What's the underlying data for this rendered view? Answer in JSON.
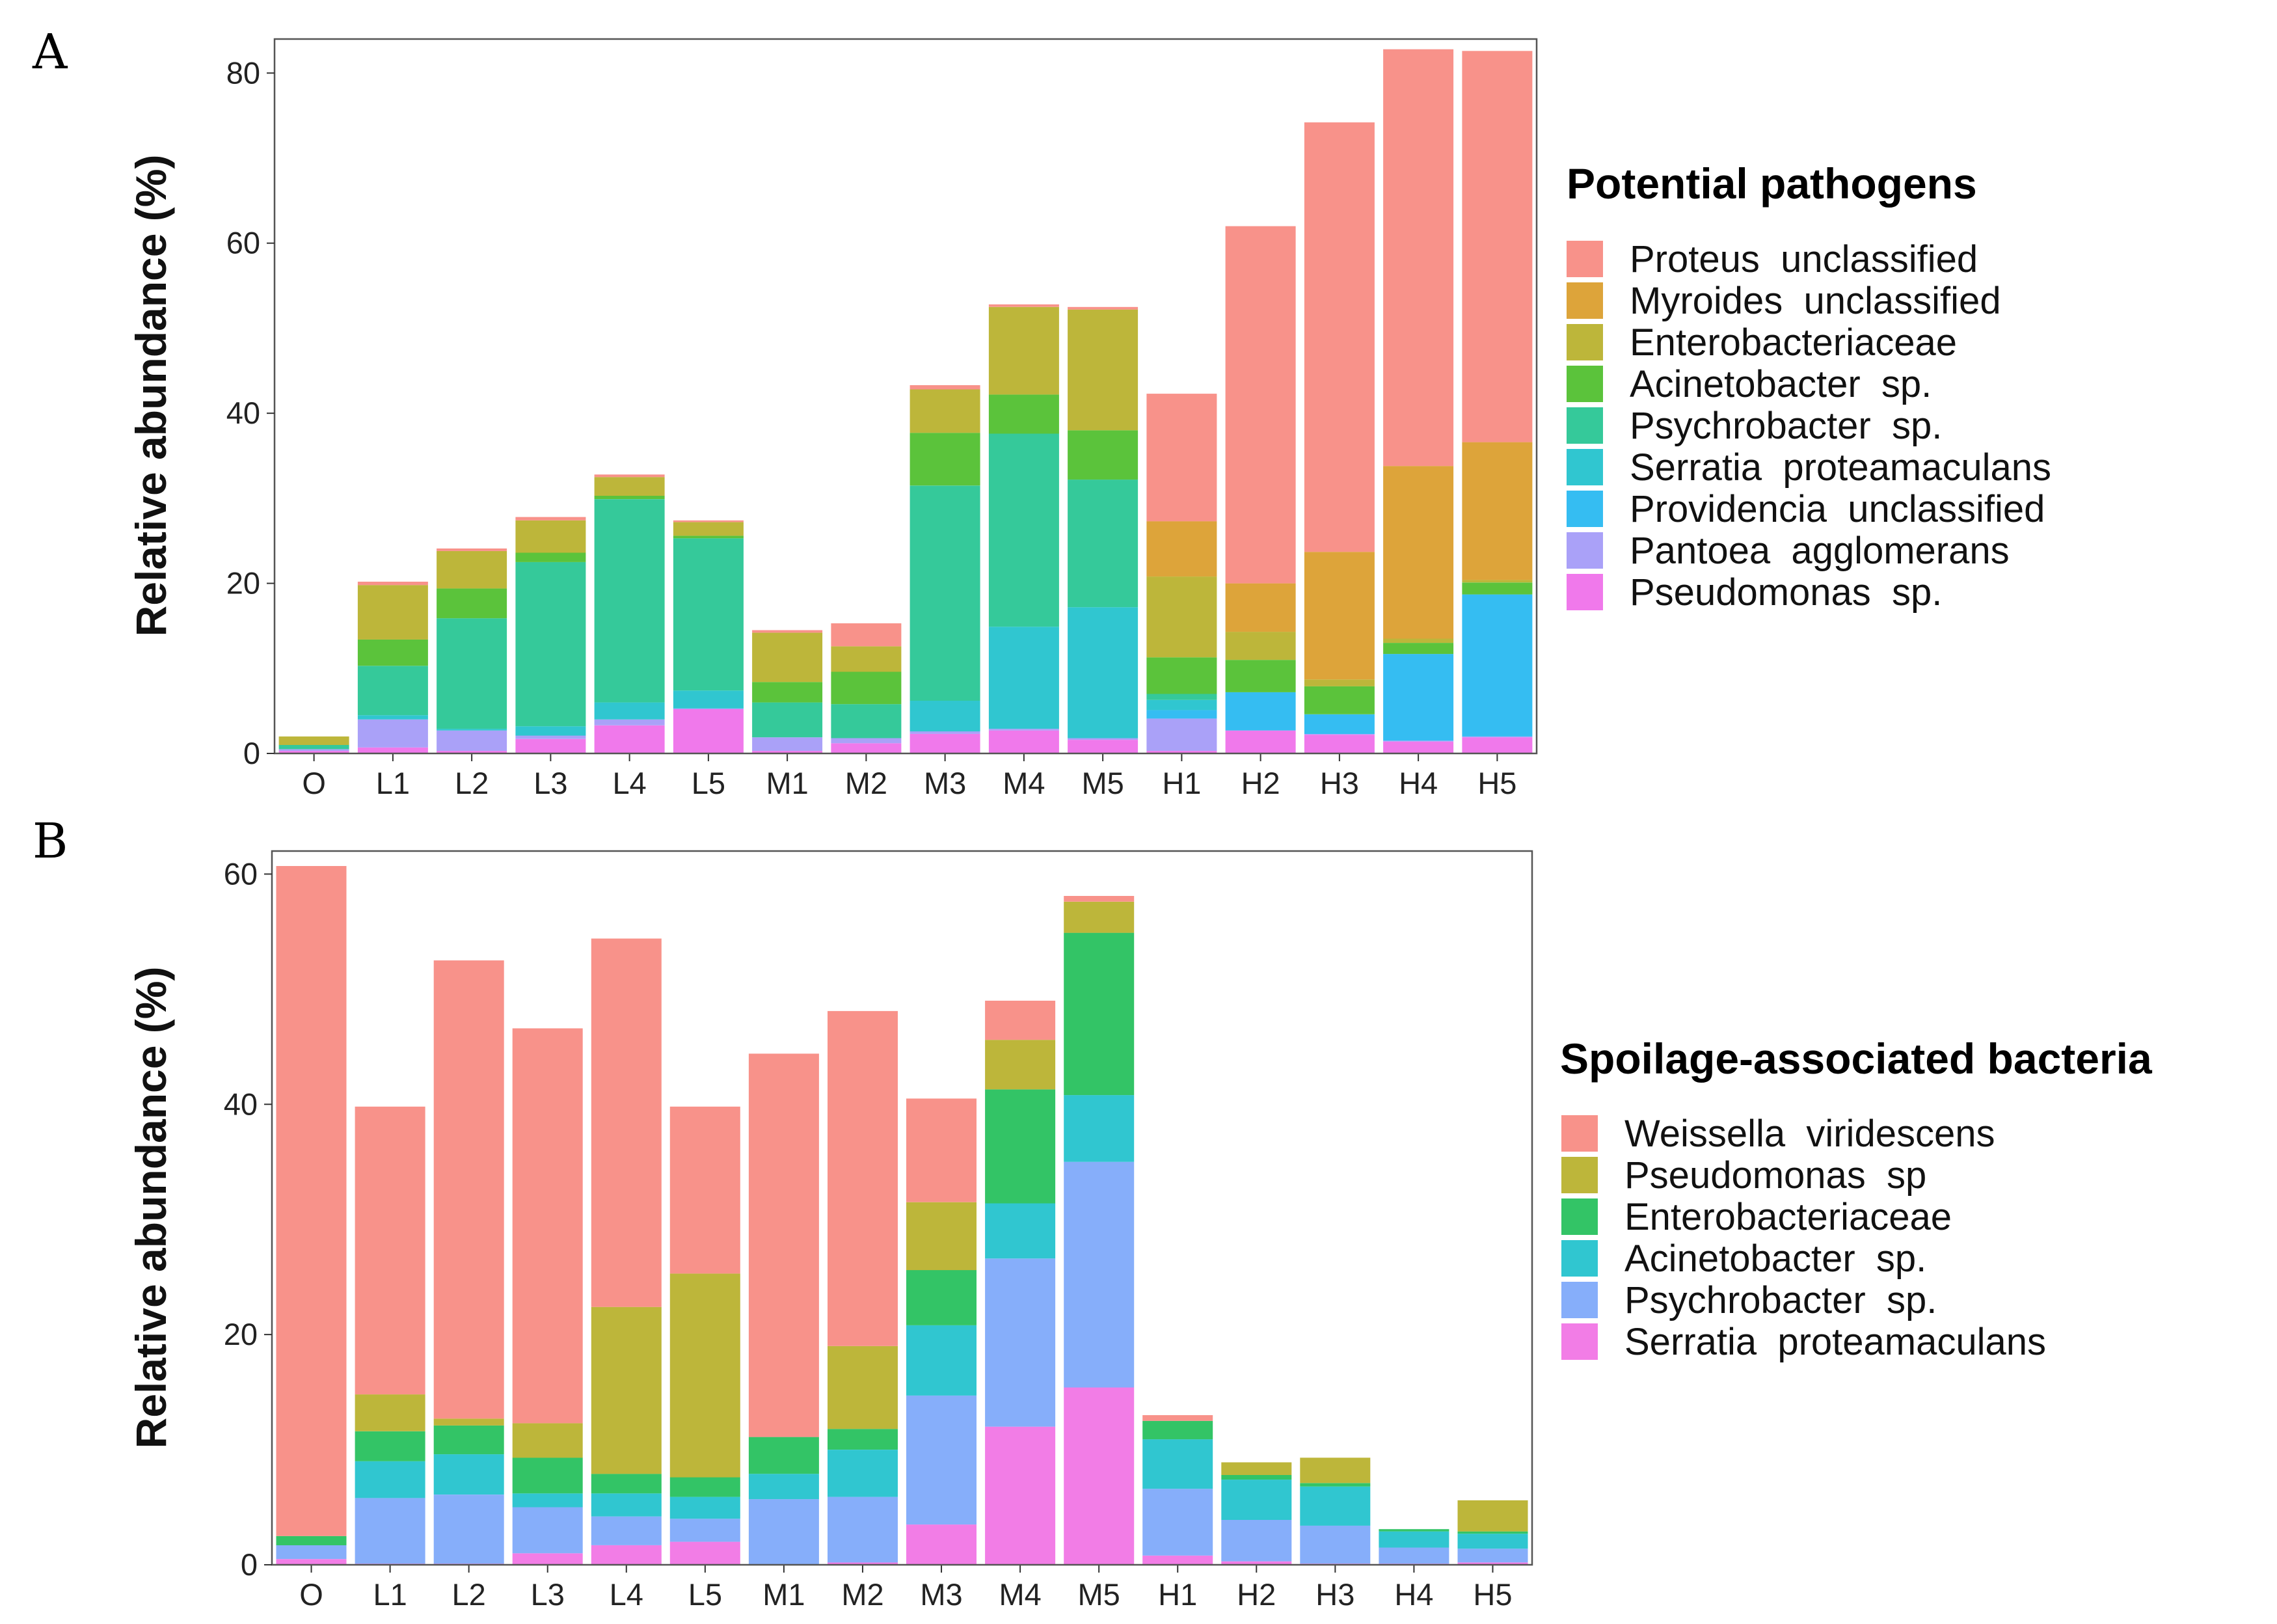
{
  "chart_data": [
    {
      "panel": "A",
      "type": "bar",
      "stacked": true,
      "ylabel": "Relative abundance (%)",
      "xlabel": "",
      "ylim": [
        0,
        84
      ],
      "yticks": [
        0,
        20,
        40,
        60,
        80
      ],
      "grid": false,
      "legend_title": "Potential pathogens",
      "legend_position": "right",
      "categories": [
        "O",
        "L1",
        "L2",
        "L3",
        "L4",
        "L5",
        "M1",
        "M2",
        "M3",
        "M4",
        "M5",
        "H1",
        "H2",
        "H3",
        "H4",
        "H5"
      ],
      "series": [
        {
          "name": "Proteus  unclassified",
          "color": "#F8928A",
          "values": [
            0,
            0.4,
            0.3,
            0.4,
            0.3,
            0.2,
            0.3,
            2.7,
            0.5,
            0.3,
            0.3,
            15,
            42,
            50.5,
            49,
            46
          ]
        },
        {
          "name": "Myroides  unclassified",
          "color": "#DDA43A",
          "values": [
            0,
            0,
            0,
            0,
            0,
            0,
            0,
            0,
            0,
            0,
            0,
            6.5,
            5.7,
            15,
            20.3,
            16.2
          ]
        },
        {
          "name": "Enterobacteriaceae",
          "color": "#BDB63A",
          "values": [
            1,
            6.4,
            4.4,
            3.8,
            2.2,
            1.6,
            5.8,
            3,
            5.1,
            10.3,
            14.2,
            9.5,
            3.3,
            0.8,
            0.5,
            0.3
          ]
        },
        {
          "name": "Acinetobacter  sp.",
          "color": "#5BC33B",
          "values": [
            0,
            3.1,
            3.5,
            1.1,
            0.4,
            0.3,
            2.4,
            3.8,
            6.2,
            4.6,
            5.8,
            4.3,
            3.8,
            3.3,
            1.3,
            1.4
          ]
        },
        {
          "name": "Psychrobacter  sp.",
          "color": "#35C99A",
          "values": [
            0.5,
            5.8,
            13,
            19.3,
            23.9,
            17.9,
            4.1,
            4,
            25.3,
            22.7,
            15,
            0.7,
            0,
            0,
            0,
            0
          ]
        },
        {
          "name": "Serratia  proteamaculans",
          "color": "#30C6D0",
          "values": [
            0,
            0.5,
            0.2,
            1.1,
            2,
            2.1,
            0,
            0,
            3.6,
            12,
            15.4,
            1.2,
            0,
            0,
            0,
            0
          ]
        },
        {
          "name": "Providencia  unclassified",
          "color": "#35BDF2",
          "values": [
            0,
            0,
            0,
            0,
            0,
            0,
            0,
            0,
            0,
            0,
            0,
            1,
            4.5,
            2.3,
            10.2,
            16.7
          ]
        },
        {
          "name": "Pantoea  agglomerans",
          "color": "#AAA1F8",
          "values": [
            0.2,
            3.3,
            2.4,
            0.4,
            0.7,
            0.1,
            1.6,
            0.6,
            0.3,
            0.2,
            0.2,
            3.8,
            0,
            0.1,
            0.1,
            0.1
          ]
        },
        {
          "name": "Pseudomonas  sp.",
          "color": "#F079EB",
          "values": [
            0.3,
            0.7,
            0.3,
            1.7,
            3.3,
            5.2,
            0.3,
            1.2,
            2.3,
            2.7,
            1.6,
            0.3,
            2.7,
            2.2,
            1.4,
            1.9
          ]
        }
      ]
    },
    {
      "panel": "B",
      "type": "bar",
      "stacked": true,
      "ylabel": "Relative abundance (%)",
      "xlabel": "",
      "ylim": [
        0,
        62
      ],
      "yticks": [
        0,
        20,
        40,
        60
      ],
      "grid": false,
      "legend_title": "Spoilage-associated bacteria",
      "legend_position": "right",
      "categories": [
        "O",
        "L1",
        "L2",
        "L3",
        "L4",
        "L5",
        "M1",
        "M2",
        "M3",
        "M4",
        "M5",
        "H1",
        "H2",
        "H3",
        "H4",
        "H5"
      ],
      "series": [
        {
          "name": "Weissella  viridescens",
          "color": "#F8928A",
          "values": [
            58.2,
            25,
            39.8,
            34.3,
            32,
            14.5,
            33.3,
            29.1,
            9,
            3.4,
            0.5,
            0.5,
            0,
            0,
            0,
            0
          ]
        },
        {
          "name": "Pseudomonas  sp",
          "color": "#BDB63A",
          "values": [
            0,
            3.2,
            0.6,
            3,
            14.5,
            17.7,
            0,
            7.2,
            5.9,
            4.3,
            2.7,
            0,
            1.1,
            2.2,
            0,
            2.7
          ]
        },
        {
          "name": "Enterobacteriaceae",
          "color": "#33C466",
          "values": [
            0.8,
            2.6,
            2.5,
            3.1,
            1.7,
            1.7,
            3.2,
            1.8,
            4.8,
            9.9,
            14.1,
            1.6,
            0.4,
            0.3,
            0.2,
            0.2
          ]
        },
        {
          "name": "Acinetobacter  sp.",
          "color": "#30C6D0",
          "values": [
            0,
            3.2,
            3.5,
            1.2,
            2,
            1.9,
            2.2,
            4.1,
            6.1,
            4.8,
            5.8,
            4.3,
            3.5,
            3.4,
            1.4,
            1.3
          ]
        },
        {
          "name": "Psychrobacter  sp.",
          "color": "#86AEFA",
          "values": [
            1.2,
            5.7,
            6,
            4,
            2.5,
            2,
            5.7,
            5.7,
            11.2,
            14.6,
            19.6,
            5.8,
            3.6,
            3.3,
            1.4,
            1.2
          ]
        },
        {
          "name": "Serratia  proteamaculans",
          "color": "#F27DE6",
          "values": [
            0.5,
            0.1,
            0.1,
            1,
            1.7,
            2,
            0,
            0.2,
            3.5,
            12,
            15.4,
            0.8,
            0.3,
            0.1,
            0.1,
            0.2
          ]
        }
      ]
    }
  ]
}
